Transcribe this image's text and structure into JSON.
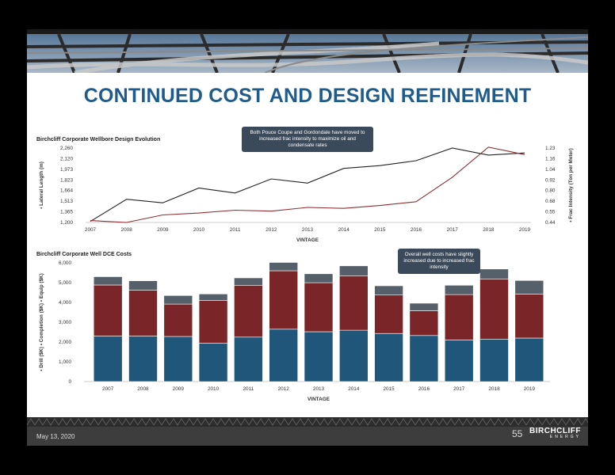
{
  "title": "CONTINUED COST AND DESIGN REFINEMENT",
  "footer": {
    "date": "May 13, 2020",
    "page": "55",
    "logo_main": "BIRCHCLIFF",
    "logo_sub": "ENERGY"
  },
  "colors": {
    "title": "#1f5c8b",
    "lateral": "#222222",
    "frac": "#8e2f34",
    "drill": "#1f5679",
    "completion": "#7a2629",
    "equip": "#55606a"
  },
  "chart_data": [
    {
      "type": "line",
      "title": "Birchcliff Corporate Wellbore Design Evolution",
      "xlabel": "VINTAGE",
      "ylabel": "Lateral Length (m)",
      "y2label": "Frac Intensity (Ton per Meter)",
      "x": [
        "2007",
        "2008",
        "2009",
        "2010",
        "2011",
        "2012",
        "2013",
        "2014",
        "2015",
        "2016",
        "2017",
        "2018",
        "2019"
      ],
      "ylim": [
        1200,
        2260
      ],
      "y2lim": [
        0.44,
        1.23
      ],
      "yticks": [
        "1,200",
        "1,365",
        "1,513",
        "1,664",
        "1,823",
        "1,973",
        "2,120",
        "2,260"
      ],
      "y2ticks": [
        "0.44",
        "0.55",
        "0.68",
        "0.80",
        "0.92",
        "1.04",
        "1.16",
        "1.23"
      ],
      "series": [
        {
          "name": "Lateral Length (m)",
          "axis": "left",
          "color": "#222222",
          "values": [
            1215,
            1530,
            1480,
            1690,
            1620,
            1820,
            1760,
            1970,
            2010,
            2080,
            2260,
            2160,
            2190
          ]
        },
        {
          "name": "Frac Intensity (Ton per Meter)",
          "axis": "right",
          "color": "#8e2f34",
          "values": [
            0.46,
            0.44,
            0.52,
            0.54,
            0.57,
            0.56,
            0.6,
            0.59,
            0.62,
            0.66,
            0.92,
            1.24,
            1.16
          ]
        }
      ],
      "annotation": "Both Pouce Coupe and Gordondale have moved to increased frac intensity to maximize oil and condensate rates"
    },
    {
      "type": "bar",
      "stacked": true,
      "title": "Birchcliff Corporate Well DCE Costs",
      "xlabel": "VINTAGE",
      "ylabel": "Drill ($K)  Completion ($K)  Equip ($K)",
      "categories": [
        "2007",
        "2008",
        "2009",
        "2010",
        "2011",
        "2012",
        "2013",
        "2014",
        "2015",
        "2016",
        "2017",
        "2018",
        "2019"
      ],
      "ylim": [
        0,
        6000
      ],
      "yticks": [
        "0",
        "1,000",
        "2,000",
        "3,000",
        "4,000",
        "5,000",
        "6,000"
      ],
      "series": [
        {
          "name": "Drill ($K)",
          "color": "#1f5679",
          "values": [
            2300,
            2300,
            2280,
            1950,
            2250,
            2650,
            2520,
            2600,
            2430,
            2330,
            2100,
            2150,
            2200
          ]
        },
        {
          "name": "Completion ($K)",
          "color": "#7a2629",
          "values": [
            2580,
            2320,
            1640,
            2150,
            2620,
            2950,
            2480,
            2750,
            1940,
            1250,
            2300,
            3040,
            2220
          ]
        },
        {
          "name": "Equip ($K)",
          "color": "#55606a",
          "values": [
            420,
            470,
            430,
            330,
            370,
            420,
            450,
            500,
            470,
            380,
            470,
            500,
            690
          ]
        }
      ],
      "annotation": "Overall well costs have slightly increased due to increased frac intensity"
    }
  ]
}
